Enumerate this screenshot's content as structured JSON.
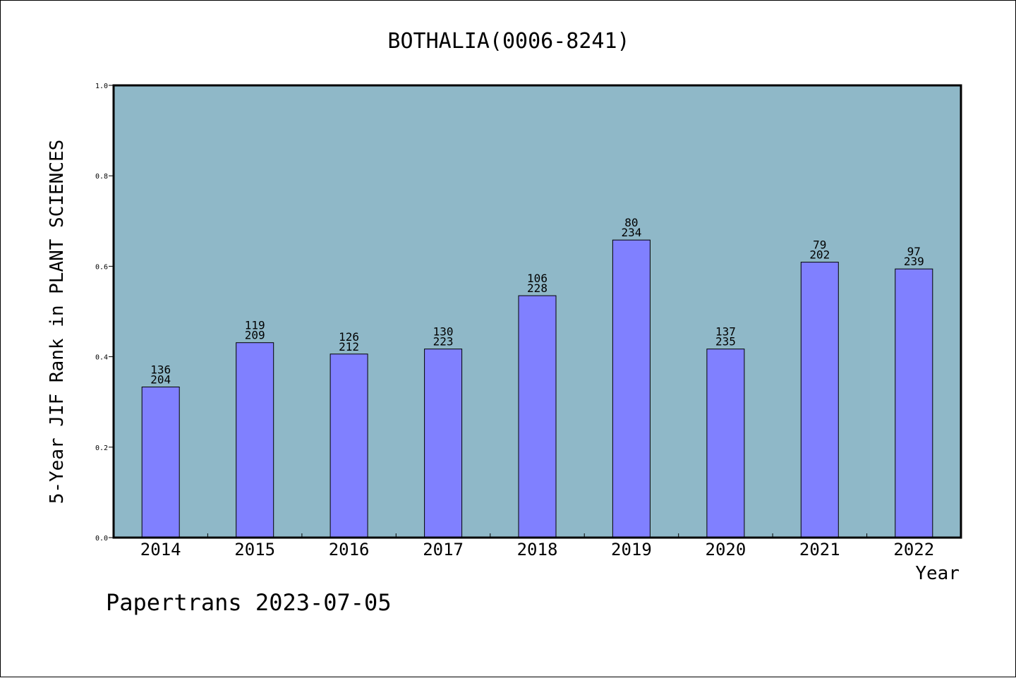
{
  "chart_data": {
    "type": "bar",
    "title": "BOTHALIA(0006-8241)",
    "xlabel": "Year",
    "ylabel": "5-Year JIF Rank in PLANT SCIENCES",
    "ylim": [
      0,
      1.0
    ],
    "yticks": [
      "0.0",
      "0.2",
      "0.4",
      "0.6",
      "0.8",
      "1.0"
    ],
    "categories": [
      "2014",
      "2015",
      "2016",
      "2017",
      "2018",
      "2019",
      "2020",
      "2021",
      "2022"
    ],
    "values": [
      0.333,
      0.431,
      0.406,
      0.417,
      0.535,
      0.658,
      0.417,
      0.609,
      0.594
    ],
    "rank_labels": [
      "136",
      "119",
      "126",
      "130",
      "106",
      "80",
      "137",
      "79",
      "97"
    ],
    "total_labels": [
      "204",
      "209",
      "212",
      "223",
      "228",
      "234",
      "235",
      "202",
      "239"
    ],
    "bar_color": "#8080ff",
    "plot_background": "#8fb8c8",
    "grid": false,
    "legend": "none"
  },
  "footer": "Papertrans 2023-07-05"
}
